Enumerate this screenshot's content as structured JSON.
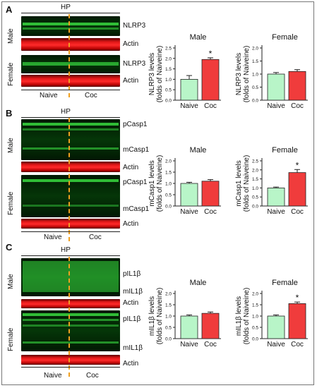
{
  "panels": [
    {
      "letter": "A",
      "hp": "HP",
      "protein_labels": [
        "NLRP3",
        "Actin",
        "NLRP3",
        "Actin"
      ],
      "sex_labels": [
        "Male",
        "Female"
      ],
      "group_labels": [
        "Naive",
        "Coc"
      ]
    },
    {
      "letter": "B",
      "hp": "HP",
      "protein_labels": [
        "pCasp1",
        "mCasp1",
        "Actin",
        "pCasp1",
        "mCasp1",
        "Actin"
      ],
      "sex_labels": [
        "Male",
        "Female"
      ],
      "group_labels": [
        "Naive",
        "Coc"
      ]
    },
    {
      "letter": "C",
      "hp": "HP",
      "protein_labels": [
        "pIL1β",
        "mIL1β",
        "Actin",
        "pIL1β",
        "mIL1β",
        "Actin"
      ],
      "sex_labels": [
        "Male",
        "Female"
      ],
      "group_labels": [
        "Naive",
        "Coc"
      ]
    }
  ],
  "colors": {
    "naive_bar": "#b8f5c8",
    "coc_bar": "#f03c3c",
    "blot_green": "#38d840",
    "blot_red": "#ff2a2a",
    "divider": "#f0a020"
  },
  "chart_data": [
    {
      "type": "bar",
      "title": "Male",
      "ylabel": [
        "NLRP3 levels",
        "(folds of Naiveine)"
      ],
      "categories": [
        "Naive",
        "Coc"
      ],
      "values": [
        1.0,
        1.95
      ],
      "errors": [
        0.18,
        0.08
      ],
      "significant": [
        false,
        true
      ],
      "ylim": [
        0,
        2.5
      ],
      "yticks": [
        "0.0",
        "0.5",
        "1.0",
        "1.5",
        "2.0",
        "2.5"
      ]
    },
    {
      "type": "bar",
      "title": "Female",
      "ylabel": [
        "NLRP3 levels",
        "(folds of Naiveine)"
      ],
      "categories": [
        "Naive",
        "Coc"
      ],
      "values": [
        1.0,
        1.1
      ],
      "errors": [
        0.06,
        0.07
      ],
      "significant": [
        false,
        false
      ],
      "ylim": [
        0,
        2.0
      ],
      "yticks": [
        "0.0",
        "0.5",
        "1.0",
        "1.5",
        "2.0"
      ]
    },
    {
      "type": "bar",
      "title": "Male",
      "ylabel": [
        "mCasp1 levels",
        "(folds of Naiveine)"
      ],
      "categories": [
        "Naive",
        "Coc"
      ],
      "values": [
        1.0,
        1.1
      ],
      "errors": [
        0.05,
        0.07
      ],
      "significant": [
        false,
        false
      ],
      "ylim": [
        0,
        2.0
      ],
      "yticks": [
        "0.0",
        "0.5",
        "1.0",
        "1.5",
        "2.0"
      ]
    },
    {
      "type": "bar",
      "title": "Female",
      "ylabel": [
        "mCasp1 levels",
        "(folds of Naiveine)"
      ],
      "categories": [
        "Naive",
        "Coc"
      ],
      "values": [
        1.0,
        1.85
      ],
      "errors": [
        0.05,
        0.17
      ],
      "significant": [
        false,
        true
      ],
      "ylim": [
        0,
        2.5
      ],
      "yticks": [
        "0.0",
        "0.5",
        "1.0",
        "1.5",
        "2.0",
        "2.5"
      ]
    },
    {
      "type": "bar",
      "title": "Male",
      "ylabel": [
        "mIL1β levels",
        "(folds of Naiveine)"
      ],
      "categories": [
        "Naive",
        "Coc"
      ],
      "values": [
        1.0,
        1.12
      ],
      "errors": [
        0.05,
        0.06
      ],
      "significant": [
        false,
        false
      ],
      "ylim": [
        0,
        2.0
      ],
      "yticks": [
        "0.0",
        "0.5",
        "1.0",
        "1.5",
        "2.0"
      ]
    },
    {
      "type": "bar",
      "title": "Female",
      "ylabel": [
        "mIL1β levels",
        "(folds of Naiveine)"
      ],
      "categories": [
        "Naive",
        "Coc"
      ],
      "values": [
        1.0,
        1.55
      ],
      "errors": [
        0.05,
        0.07
      ],
      "significant": [
        false,
        true
      ],
      "ylim": [
        0,
        2.0
      ],
      "yticks": [
        "0.0",
        "0.5",
        "1.0",
        "1.5",
        "2.0"
      ]
    }
  ],
  "significance_mark": "*"
}
